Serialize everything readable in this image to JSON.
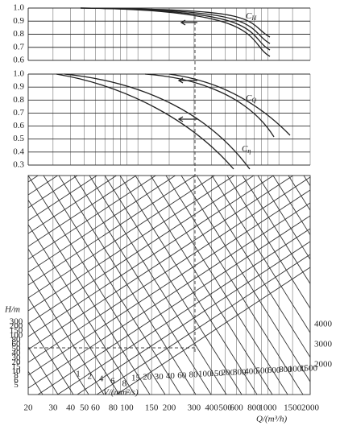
{
  "head_correction": {
    "curve_label": {
      "symbol": "C",
      "subscript": "H"
    },
    "yticks": [
      "1.0",
      "0.9",
      "0.8",
      "0.7",
      "0.6"
    ]
  },
  "flow_efficiency": {
    "curve_labels": [
      {
        "symbol": "C",
        "subscript": "Q"
      },
      {
        "symbol": "C",
        "subscript": "η"
      }
    ],
    "yticks": [
      "1.0",
      "0.9",
      "0.8",
      "0.7",
      "0.6",
      "0.5",
      "0.4",
      "0.3"
    ]
  },
  "nomogram": {
    "head_title": "H/m",
    "head_labels": [
      "300",
      "200",
      "150",
      "100",
      "80",
      "60",
      "50",
      "40",
      "30",
      "20",
      "15",
      "10",
      "8",
      "6",
      "5"
    ],
    "head_labels_right": [
      "4000",
      "3000",
      "2000"
    ],
    "viscosity_title": "V/(mm²/s)",
    "viscosity_labels": [
      "1",
      "2",
      "4",
      "6",
      "8",
      "15",
      "20",
      "30",
      "40",
      "60",
      "80",
      "100",
      "150",
      "200",
      "300",
      "400",
      "500",
      "600",
      "800",
      "1000",
      "1500"
    ],
    "flow_title": "Q/(m³/h)",
    "flow_labels": [
      20,
      30,
      40,
      50,
      60,
      80,
      100,
      150,
      200,
      300,
      400,
      500,
      600,
      800,
      1000,
      1500,
      2000
    ]
  }
}
